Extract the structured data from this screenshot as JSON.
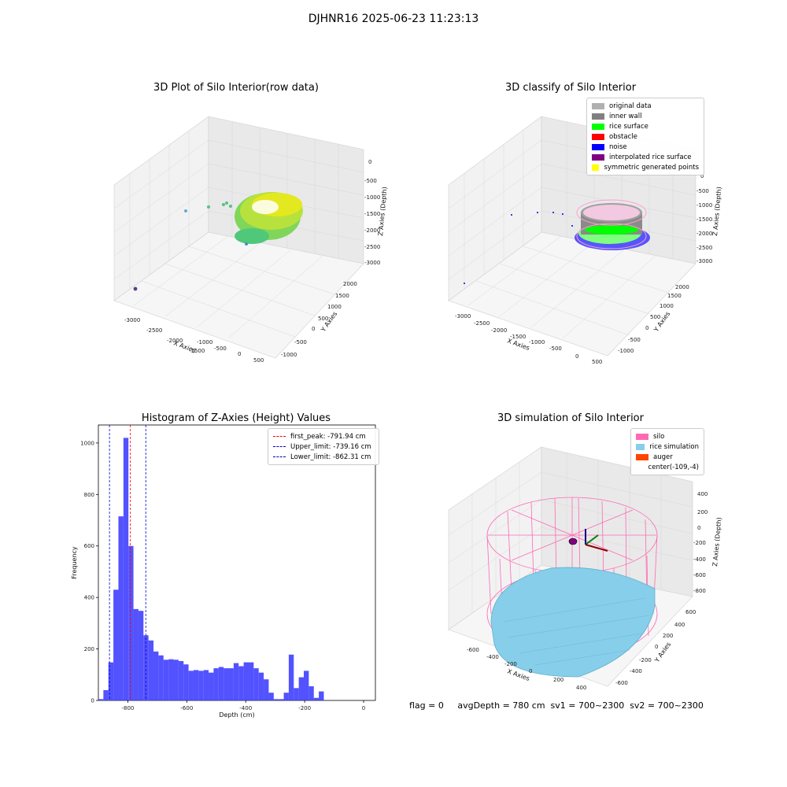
{
  "figure": {
    "title": "DJHNR16 2025-06-23 11:23:13",
    "footer": "flag = 0     avgDepth = 780 cm  sv1 = 700~2300  sv2 = 700~2300"
  },
  "colors": {
    "hist_bar": "#3a3aff",
    "first_peak": "#ff0000",
    "limits": "#0000cc",
    "silo": "#ff69b4",
    "rice_sim": "#87ceeb",
    "auger": "#ff4500",
    "pane": "#f0f0f0",
    "grid": "#d8d8d8"
  },
  "panels": {
    "raw": {
      "title": "3D Plot of Silo Interior(row data)",
      "x_label": "X Axies",
      "y_label": "Y Axies",
      "z_label": "Z Axies (Depth)",
      "x_ticks": [
        "-3000",
        "-2500",
        "-2000",
        "-1500",
        "-1000",
        "-500",
        "0",
        "500"
      ],
      "y_ticks": [
        "-1000",
        "-500",
        "0",
        "500",
        "1000",
        "1500",
        "2000"
      ],
      "z_ticks": [
        "0",
        "-500",
        "-1000",
        "-1500",
        "-2000",
        "-2500",
        "-3000"
      ]
    },
    "classify": {
      "title": "3D classify of Silo Interior",
      "x_label": "X Axies",
      "y_label": "Y Axies",
      "z_label": "Z Axies (Depth)",
      "x_ticks": [
        "-3000",
        "-2500",
        "-2000",
        "-1500",
        "-1000",
        "-500",
        "0",
        "500"
      ],
      "y_ticks": [
        "-1000",
        "-500",
        "0",
        "500",
        "1000",
        "1500",
        "2000"
      ],
      "z_ticks": [
        "0",
        "-500",
        "-1000",
        "-1500",
        "-2000",
        "-2500",
        "-3000"
      ],
      "legend": [
        {
          "label": "original data",
          "color": "#b0b0b0"
        },
        {
          "label": "inner wall",
          "color": "#808080"
        },
        {
          "label": "rice surface",
          "color": "#00ff00"
        },
        {
          "label": "obstacle",
          "color": "#ff0000"
        },
        {
          "label": "noise",
          "color": "#0000ff"
        },
        {
          "label": "interpolated rice surface",
          "color": "#800080"
        },
        {
          "label": "symmetric generated points",
          "color": "#ffff00"
        }
      ]
    },
    "simulation": {
      "title": "3D simulation of Silo Interior",
      "x_label": "X Axies",
      "y_label": "Y Axies",
      "z_label": "Z Axies (Depth)",
      "x_ticks": [
        "-600",
        "-400",
        "-200",
        "0",
        "200",
        "400"
      ],
      "y_ticks": [
        "-600",
        "-400",
        "-200",
        "0",
        "200",
        "400",
        "600"
      ],
      "z_ticks": [
        "400",
        "200",
        "0",
        "-200",
        "-400",
        "-600",
        "-800"
      ],
      "legend": [
        {
          "label": "silo",
          "color": "#ff69b4"
        },
        {
          "label": "rice simulation",
          "color": "#87ceeb"
        },
        {
          "label": "auger",
          "color": "#ff4500"
        },
        {
          "label": "center(-109,-4)",
          "color": ""
        }
      ]
    }
  },
  "chart_data": {
    "type": "bar",
    "title": "Histogram of Z-Axies (Height) Values",
    "xlabel": "Depth (cm)",
    "ylabel": "Frequency",
    "xlim": [
      -900,
      40
    ],
    "ylim": [
      0,
      1070
    ],
    "x_ticks": [
      -800,
      -600,
      -400,
      -200,
      0
    ],
    "y_ticks": [
      0,
      200,
      400,
      600,
      800,
      1000
    ],
    "bin_width": 17,
    "bins": [
      {
        "left": -900,
        "count": 5
      },
      {
        "left": -883,
        "count": 40
      },
      {
        "left": -866,
        "count": 148
      },
      {
        "left": -849,
        "count": 430
      },
      {
        "left": -832,
        "count": 715
      },
      {
        "left": -815,
        "count": 1020
      },
      {
        "left": -798,
        "count": 600
      },
      {
        "left": -781,
        "count": 355
      },
      {
        "left": -764,
        "count": 348
      },
      {
        "left": -747,
        "count": 253
      },
      {
        "left": -730,
        "count": 233
      },
      {
        "left": -713,
        "count": 190
      },
      {
        "left": -696,
        "count": 175
      },
      {
        "left": -679,
        "count": 158
      },
      {
        "left": -662,
        "count": 160
      },
      {
        "left": -645,
        "count": 158
      },
      {
        "left": -628,
        "count": 153
      },
      {
        "left": -611,
        "count": 140
      },
      {
        "left": -594,
        "count": 115
      },
      {
        "left": -577,
        "count": 118
      },
      {
        "left": -560,
        "count": 115
      },
      {
        "left": -543,
        "count": 118
      },
      {
        "left": -526,
        "count": 108
      },
      {
        "left": -509,
        "count": 125
      },
      {
        "left": -492,
        "count": 130
      },
      {
        "left": -475,
        "count": 125
      },
      {
        "left": -458,
        "count": 125
      },
      {
        "left": -441,
        "count": 145
      },
      {
        "left": -424,
        "count": 133
      },
      {
        "left": -407,
        "count": 148
      },
      {
        "left": -390,
        "count": 148
      },
      {
        "left": -373,
        "count": 125
      },
      {
        "left": -356,
        "count": 108
      },
      {
        "left": -339,
        "count": 82
      },
      {
        "left": -322,
        "count": 30
      },
      {
        "left": -305,
        "count": 5
      },
      {
        "left": -288,
        "count": 5
      },
      {
        "left": -271,
        "count": 30
      },
      {
        "left": -254,
        "count": 178
      },
      {
        "left": -237,
        "count": 48
      },
      {
        "left": -220,
        "count": 90
      },
      {
        "left": -203,
        "count": 115
      },
      {
        "left": -186,
        "count": 55
      },
      {
        "left": -169,
        "count": 10
      },
      {
        "left": -152,
        "count": 35
      }
    ],
    "vlines": [
      {
        "label": "first_peak: -791.94 cm",
        "x": -791.94,
        "color": "#ff0000"
      },
      {
        "label": "Upper_limit: -739.16 cm",
        "x": -739.16,
        "color": "#0000cc"
      },
      {
        "label": "Lower_limit: -862.31 cm",
        "x": -862.31,
        "color": "#0000cc"
      }
    ]
  }
}
